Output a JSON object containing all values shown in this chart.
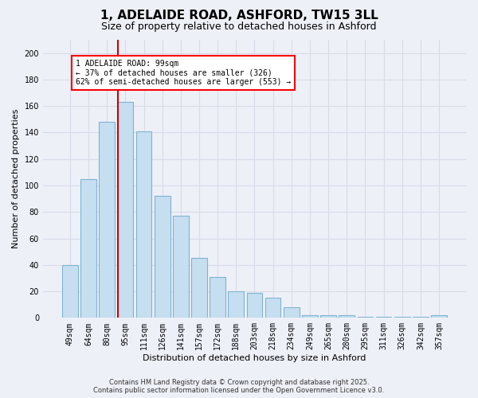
{
  "title": "1, ADELAIDE ROAD, ASHFORD, TW15 3LL",
  "subtitle": "Size of property relative to detached houses in Ashford",
  "xlabel": "Distribution of detached houses by size in Ashford",
  "ylabel": "Number of detached properties",
  "categories": [
    "49sqm",
    "64sqm",
    "80sqm",
    "95sqm",
    "111sqm",
    "126sqm",
    "141sqm",
    "157sqm",
    "172sqm",
    "188sqm",
    "203sqm",
    "218sqm",
    "234sqm",
    "249sqm",
    "265sqm",
    "280sqm",
    "295sqm",
    "311sqm",
    "326sqm",
    "342sqm",
    "357sqm"
  ],
  "values": [
    40,
    105,
    148,
    163,
    141,
    92,
    77,
    45,
    31,
    20,
    19,
    15,
    8,
    2,
    2,
    2,
    1,
    1,
    1,
    1,
    2
  ],
  "bar_color": "#c5dff0",
  "bar_edge_color": "#7fb3d3",
  "vline_x_index": 3,
  "vline_color": "#cc0000",
  "ylim": [
    0,
    210
  ],
  "yticks": [
    0,
    20,
    40,
    60,
    80,
    100,
    120,
    140,
    160,
    180,
    200
  ],
  "annotation_box_text_line1": "1 ADELAIDE ROAD: 99sqm",
  "annotation_box_text_line2": "← 37% of detached houses are smaller (326)",
  "annotation_box_text_line3": "62% of semi-detached houses are larger (553) →",
  "footer_line1": "Contains HM Land Registry data © Crown copyright and database right 2025.",
  "footer_line2": "Contains public sector information licensed under the Open Government Licence v3.0.",
  "background_color": "#eef0f8",
  "grid_color": "#d8dce8",
  "title_fontsize": 11,
  "subtitle_fontsize": 9,
  "axis_label_fontsize": 8,
  "tick_fontsize": 7,
  "bar_width": 0.85
}
